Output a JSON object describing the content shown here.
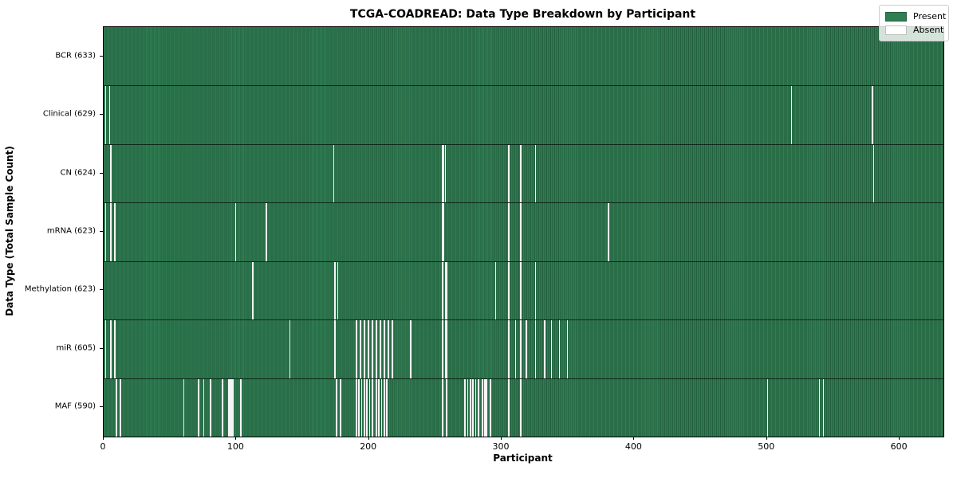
{
  "title": "TCGA-COADREAD: Data Type Breakdown by Participant",
  "xlabel": "Participant",
  "ylabel": "Data Type (Total Sample Count)",
  "legend": {
    "present_label": "Present",
    "absent_label": "Absent"
  },
  "colors": {
    "present": "#2f7e53",
    "present_stripe": "#235e3d",
    "absent": "#f4f4f4",
    "plot_border": "#000000"
  },
  "chart_data": {
    "type": "heatmap",
    "title": "TCGA-COADREAD: Data Type Breakdown by Participant",
    "xlabel": "Participant",
    "ylabel": "Data Type (Total Sample Count)",
    "legend_entries": [
      "Present",
      "Absent"
    ],
    "legend_position": "upper right",
    "total_participants": 633,
    "x_ticks": [
      0,
      100,
      200,
      300,
      400,
      500,
      600
    ],
    "xlim": [
      0,
      633
    ],
    "grid": false,
    "rows": [
      {
        "label": "BCR (633)",
        "data_type": "BCR",
        "sample_count": 633,
        "absent_participants": []
      },
      {
        "label": "Clinical (629)",
        "data_type": "Clinical",
        "sample_count": 629,
        "absent_participants": [
          1,
          4,
          518,
          579
        ]
      },
      {
        "label": "CN (624)",
        "data_type": "CN",
        "sample_count": 624,
        "absent_participants": [
          5,
          173,
          255,
          256,
          257,
          305,
          314,
          325,
          580
        ]
      },
      {
        "label": "mRNA (623)",
        "data_type": "mRNA",
        "sample_count": 623,
        "absent_participants": [
          1,
          5,
          8,
          99,
          122,
          255,
          256,
          305,
          314,
          380
        ]
      },
      {
        "label": "Methylation (623)",
        "data_type": "Methylation",
        "sample_count": 623,
        "absent_participants": [
          112,
          174,
          176,
          255,
          257,
          258,
          295,
          305,
          314,
          325
        ]
      },
      {
        "label": "miR (605)",
        "data_type": "miR",
        "sample_count": 605,
        "absent_participants": [
          1,
          5,
          8,
          140,
          174,
          190,
          193,
          196,
          199,
          202,
          205,
          208,
          211,
          214,
          217,
          231,
          255,
          257,
          258,
          305,
          310,
          314,
          318,
          325,
          332,
          337,
          343,
          349
        ]
      },
      {
        "label": "MAF (590)",
        "data_type": "MAF",
        "sample_count": 590,
        "absent_participants": [
          9,
          12,
          60,
          71,
          75,
          80,
          89,
          94,
          95,
          96,
          97,
          103,
          175,
          178,
          190,
          192,
          194,
          196,
          198,
          200,
          202,
          205,
          207,
          209,
          211,
          213,
          255,
          258,
          272,
          274,
          276,
          278,
          280,
          282,
          285,
          287,
          288,
          291,
          305,
          314,
          500,
          539,
          542
        ]
      }
    ]
  }
}
